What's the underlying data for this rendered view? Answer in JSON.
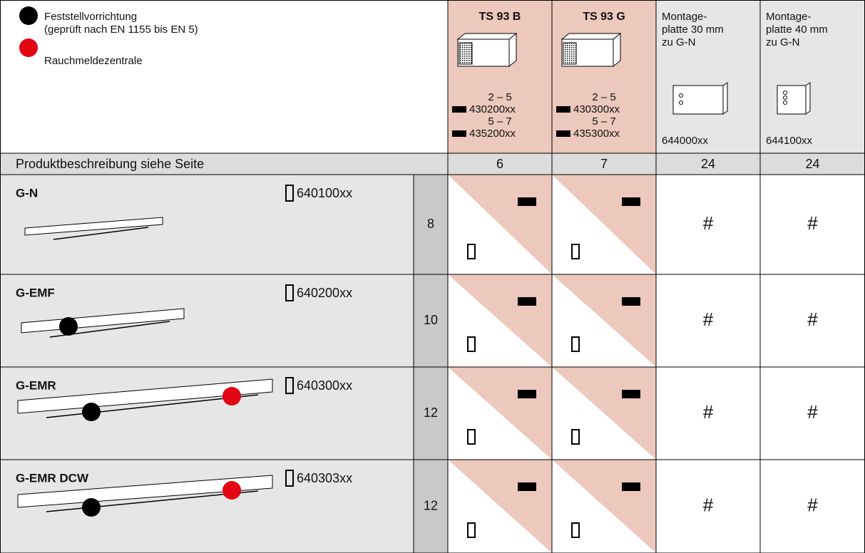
{
  "legend": [
    "Feststellvorrichtung",
    "(geprüft nach EN 1155 bis EN 5)",
    "Rauchmeldezentrale"
  ],
  "header": {
    "closers": [
      {
        "title": "TS 93 B",
        "variants": [
          {
            "range": "2 – 5",
            "article": "430200xx"
          },
          {
            "range": "5 – 7",
            "article": "435200xx"
          }
        ]
      },
      {
        "title": "TS 93 G",
        "variants": [
          {
            "range": "2 – 5",
            "article": "430300xx"
          },
          {
            "range": "5 – 7",
            "article": "435300xx"
          }
        ]
      }
    ],
    "plates": [
      {
        "lines": [
          "Montage-",
          "platte 30 mm",
          "zu G-N"
        ],
        "article": "644000xx"
      },
      {
        "lines": [
          "Montage-",
          "platte 40 mm",
          "zu G-N"
        ],
        "article": "644100xx"
      }
    ]
  },
  "page_row": {
    "label": "Produktbeschreibung siehe Seite",
    "pages": [
      "6",
      "7",
      "24",
      "24"
    ]
  },
  "rows": [
    {
      "name": "G-N",
      "article": "640100xx",
      "page": "8",
      "plates": [
        "#",
        "#"
      ]
    },
    {
      "name": "G-EMF",
      "article": "640200xx",
      "page": "10",
      "plates": [
        "#",
        "#"
      ]
    },
    {
      "name": "G-EMR",
      "article": "640300xx",
      "page": "12",
      "plates": [
        "#",
        "#"
      ]
    },
    {
      "name": "G-EMR DCW",
      "article": "640303xx",
      "page": "12",
      "plates": [
        "#",
        "#"
      ]
    }
  ]
}
